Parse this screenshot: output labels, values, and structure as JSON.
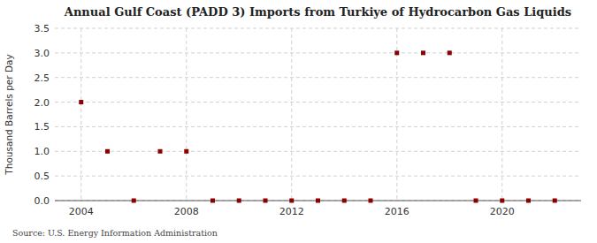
{
  "chart_data": {
    "type": "scatter",
    "title": "Annual Gulf Coast (PADD 3) Imports from Turkiye of Hydrocarbon Gas Liquids",
    "y_label": "Thousand Barrels per Day",
    "annotations": [
      "Source: U.S. Energy Information Administration"
    ],
    "x": [
      2004,
      2005,
      2006,
      2007,
      2008,
      2009,
      2010,
      2011,
      2012,
      2013,
      2014,
      2015,
      2016,
      2017,
      2018,
      2019,
      2020,
      2021,
      2022
    ],
    "values": [
      2.0,
      1.0,
      0.0,
      1.0,
      1.0,
      0.0,
      0.0,
      0.0,
      0.0,
      0.0,
      0.0,
      0.0,
      3.0,
      3.0,
      3.0,
      0.0,
      0.0,
      0.0,
      0.0
    ],
    "color": "#8b0000",
    "marker": "square",
    "xlim": [
      2003.0,
      2023.0
    ],
    "ylim": [
      0.0,
      3.5
    ],
    "xticks": [
      2004,
      2008,
      2012,
      2016,
      2020
    ],
    "yticks": [
      {
        "value": 0.0,
        "label": "0.0"
      },
      0.5,
      {
        "value": 1.0,
        "label": "1.0"
      },
      1.5,
      {
        "value": 2.0,
        "label": "2.0"
      },
      2.5,
      {
        "value": 3.0,
        "label": "3.0"
      },
      3.5
    ],
    "grid": true
  }
}
